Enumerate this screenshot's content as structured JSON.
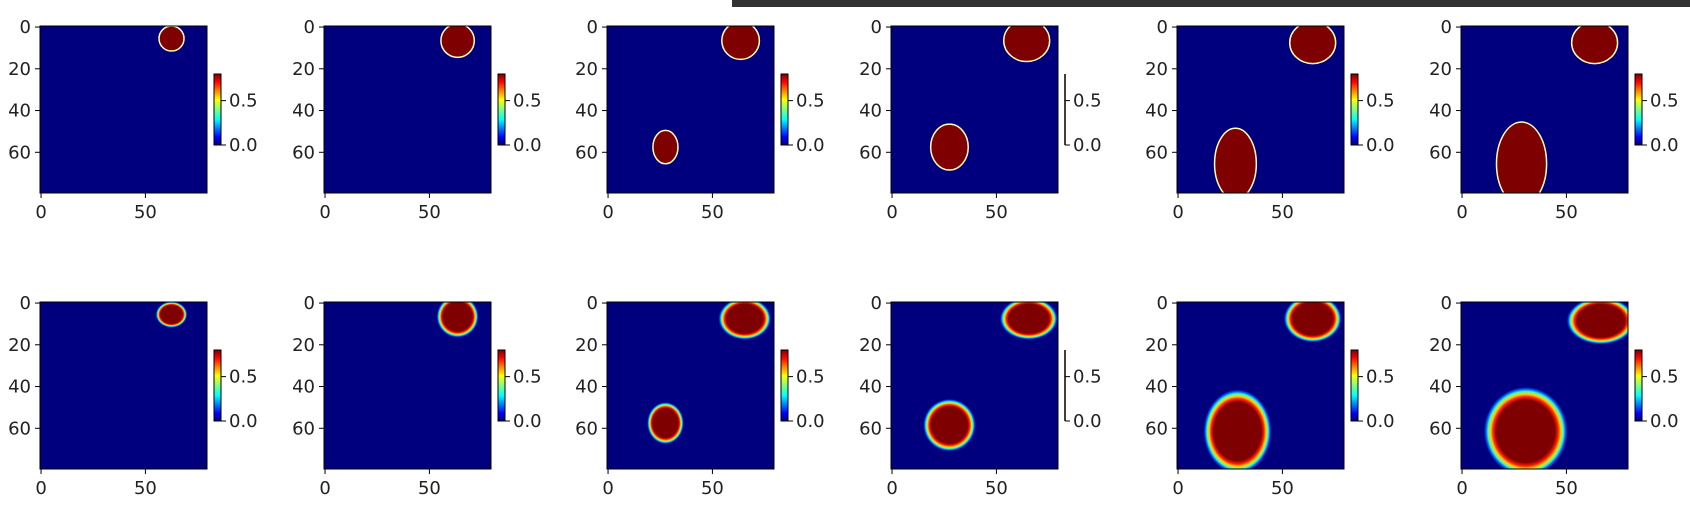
{
  "colors": {
    "background": "#00007f",
    "blob": "#7f0000",
    "axis": "#000000",
    "topbar": "#333333"
  },
  "chart_data": {
    "type": "heatmap",
    "layout": "grid 2 rows x 6 columns",
    "colormap": "jet",
    "image_size": [
      80,
      80
    ],
    "x_ticks": [
      "0",
      "50"
    ],
    "y_ticks": [
      "0",
      "20",
      "40",
      "60"
    ],
    "colorbar_ticks": [
      "0.5",
      "0.0"
    ],
    "colorbar_range": [
      0.0,
      0.8
    ],
    "rows": [
      {
        "edge": "sharp",
        "panels": [
          {
            "blobs": [
              {
                "cx": 63,
                "cy": 6,
                "rx": 6,
                "ry": 6
              }
            ],
            "colorbar_visible": true
          },
          {
            "blobs": [
              {
                "cx": 64,
                "cy": 7,
                "rx": 8,
                "ry": 8
              }
            ],
            "colorbar_visible": true
          },
          {
            "blobs": [
              {
                "cx": 64,
                "cy": 7,
                "rx": 9,
                "ry": 9
              },
              {
                "cx": 28,
                "cy": 58,
                "rx": 6,
                "ry": 8
              }
            ],
            "colorbar_visible": true
          },
          {
            "blobs": [
              {
                "cx": 65,
                "cy": 7,
                "rx": 11,
                "ry": 10
              },
              {
                "cx": 28,
                "cy": 58,
                "rx": 9,
                "ry": 11
              }
            ],
            "colorbar_visible": false
          },
          {
            "blobs": [
              {
                "cx": 65,
                "cy": 8,
                "rx": 11,
                "ry": 10
              },
              {
                "cx": 28,
                "cy": 66,
                "rx": 10,
                "ry": 17
              }
            ],
            "colorbar_visible": true
          },
          {
            "blobs": [
              {
                "cx": 64,
                "cy": 8,
                "rx": 11,
                "ry": 10
              },
              {
                "cx": 29,
                "cy": 66,
                "rx": 12,
                "ry": 20
              }
            ],
            "colorbar_visible": true
          }
        ]
      },
      {
        "edge": "soft",
        "panels": [
          {
            "blobs": [
              {
                "cx": 63,
                "cy": 6,
                "rx": 6,
                "ry": 5
              }
            ],
            "colorbar_visible": true
          },
          {
            "blobs": [
              {
                "cx": 64,
                "cy": 7,
                "rx": 8,
                "ry": 8
              }
            ],
            "colorbar_visible": true
          },
          {
            "blobs": [
              {
                "cx": 66,
                "cy": 8,
                "rx": 10,
                "ry": 8
              },
              {
                "cx": 28,
                "cy": 58,
                "rx": 7,
                "ry": 8
              }
            ],
            "colorbar_visible": true
          },
          {
            "blobs": [
              {
                "cx": 66,
                "cy": 8,
                "rx": 11,
                "ry": 8
              },
              {
                "cx": 28,
                "cy": 59,
                "rx": 10,
                "ry": 10
              }
            ],
            "colorbar_visible": false
          },
          {
            "blobs": [
              {
                "cx": 65,
                "cy": 8,
                "rx": 11,
                "ry": 9
              },
              {
                "cx": 29,
                "cy": 62,
                "rx": 13,
                "ry": 16
              }
            ],
            "colorbar_visible": true
          },
          {
            "blobs": [
              {
                "cx": 67,
                "cy": 9,
                "rx": 13,
                "ry": 9
              },
              {
                "cx": 31,
                "cy": 62,
                "rx": 16,
                "ry": 17
              }
            ],
            "colorbar_visible": true
          }
        ]
      }
    ]
  }
}
